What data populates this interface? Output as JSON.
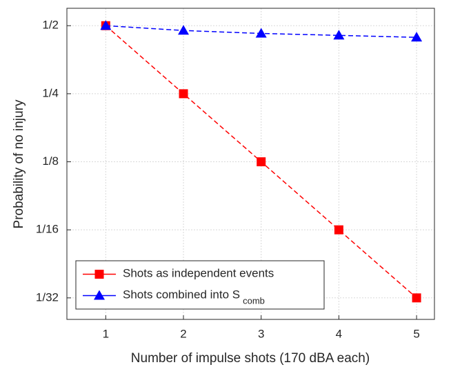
{
  "chart_data": {
    "type": "line",
    "xlabel": "Number of impulse shots (170 dBA each)",
    "ylabel": "Probability of no injury",
    "x": [
      1,
      2,
      3,
      4,
      5
    ],
    "series": [
      {
        "name": "Shots as independent events",
        "color": "#ff0000",
        "marker": "square",
        "values": [
          0.5,
          0.25,
          0.125,
          0.0625,
          0.03125
        ]
      },
      {
        "name": "Shots combined into S",
        "name_subscript": "comb",
        "color": "#0000ff",
        "marker": "triangle",
        "values": [
          0.5,
          0.476,
          0.462,
          0.453,
          0.444
        ]
      }
    ],
    "xlim": [
      0.5,
      5.23
    ],
    "xticks": [
      1,
      2,
      3,
      4,
      5
    ],
    "ylim": [
      0.0251,
      0.597
    ],
    "yscale": "log",
    "yticks": [
      {
        "value": 0.5,
        "label": "1/2"
      },
      {
        "value": 0.25,
        "label": "1/4"
      },
      {
        "value": 0.125,
        "label": "1/8"
      },
      {
        "value": 0.0625,
        "label": "1/16"
      },
      {
        "value": 0.03125,
        "label": "1/32"
      }
    ],
    "grid": true,
    "legend": "lower left"
  }
}
